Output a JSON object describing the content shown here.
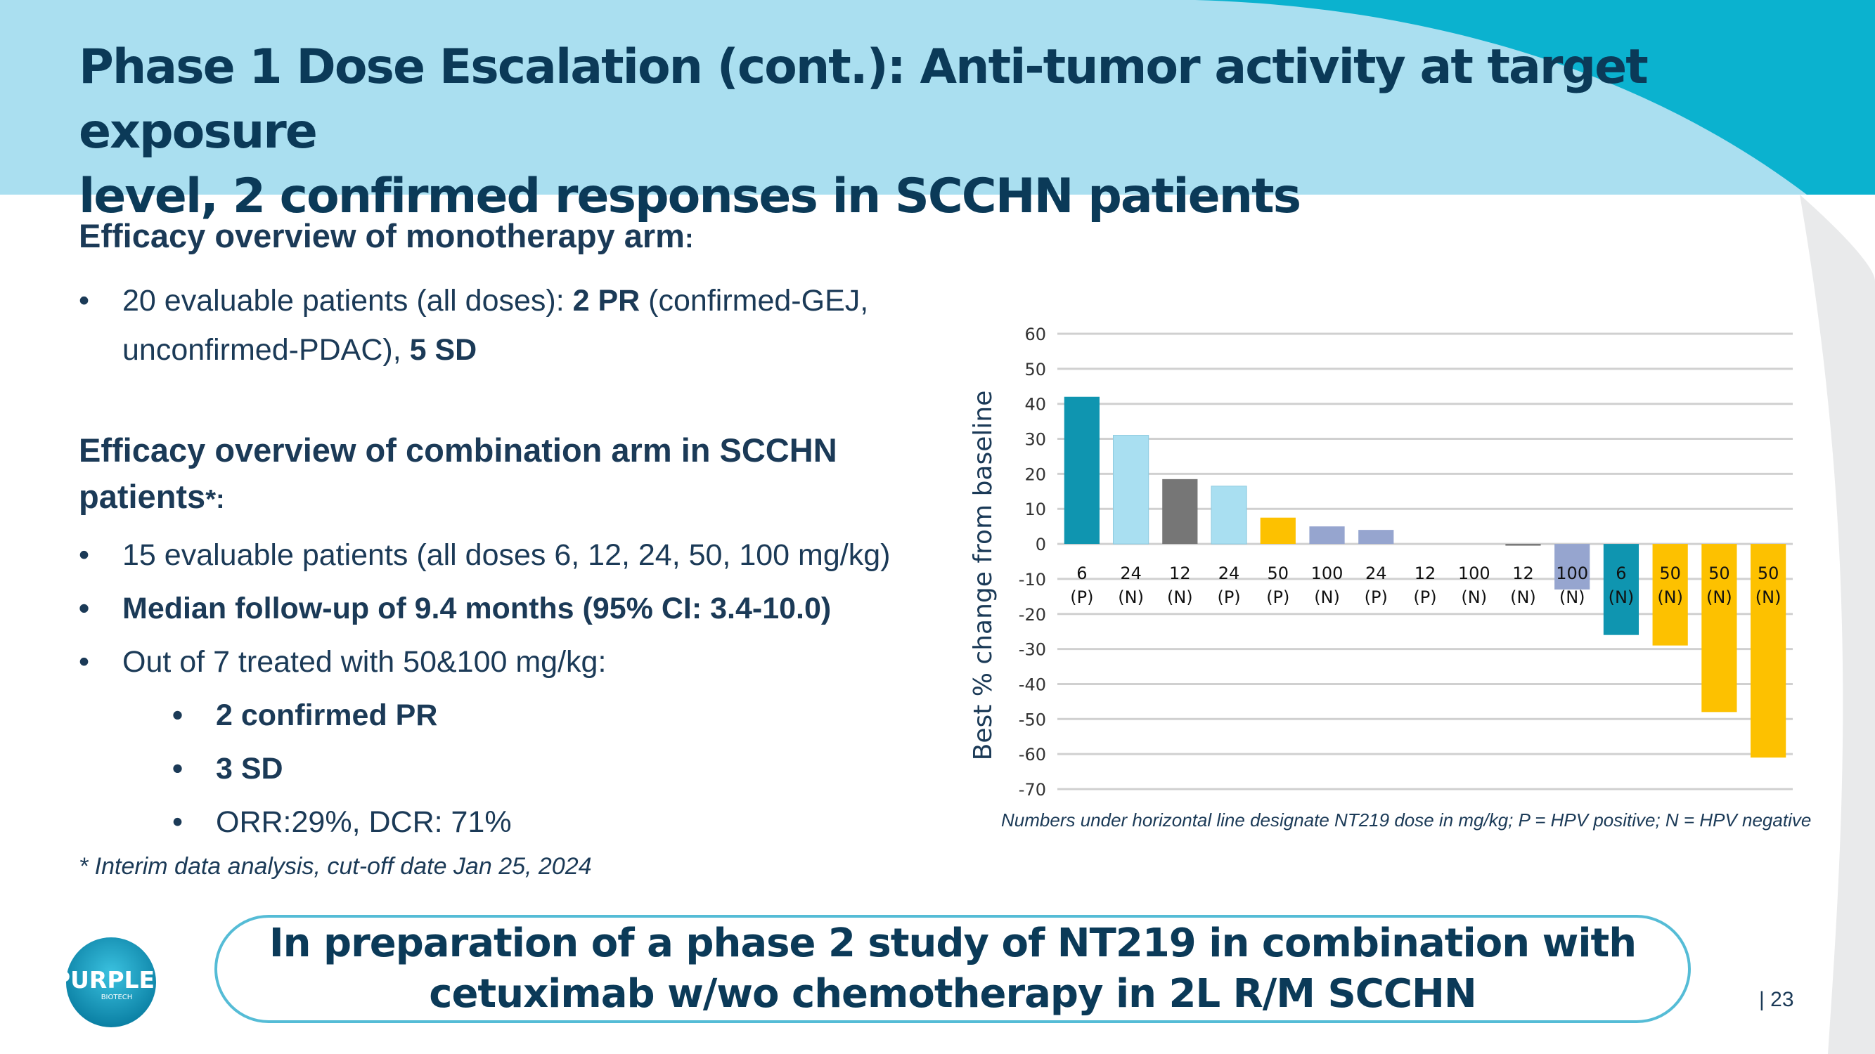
{
  "slide": {
    "title_line1": "Phase 1 Dose Escalation (cont.): Anti-tumor activity at target exposure",
    "title_line2": "level, 2 confirmed responses in SCCHN patients",
    "mono": {
      "heading": "Efficacy overview of monotherapy arm",
      "heading_suffix": ":",
      "b1_pre": "20 evaluable patients (all doses):  ",
      "b1_bold1": "2 PR",
      "b1_mid": " (confirmed-GEJ,",
      "b1_line2": "unconfirmed-PDAC), ",
      "b1_bold2": "5 SD"
    },
    "combo": {
      "heading_line1": "Efficacy overview of combination arm in SCCHN",
      "heading_line2": "patients",
      "heading_star": "*:",
      "b1": "15 evaluable patients (all doses 6, 12, 24, 50, 100 mg/kg)",
      "b2": " Median follow-up of 9.4 months (95% CI: 3.4-10.0)",
      "b3": "Out of 7 treated with 50&100 mg/kg:",
      "sub1": "2 confirmed PR",
      "sub2": "3 SD",
      "sub3": "ORR:29%, DCR: 71%"
    },
    "footnote": "* Interim data analysis, cut-off date Jan 25, 2024",
    "chart_note": "Numbers under horizontal line designate NT219 dose in mg/kg; P = HPV positive; N = HPV negative",
    "cta_line1": "In preparation of a phase 2 study of NT219 in combination with",
    "cta_line2": "cetuximab w/wo chemotherapy in 2L R/M SCCHN",
    "logo_text": "PURPLE",
    "logo_sub": "BIOTECH",
    "page_number": "| 23"
  },
  "colors": {
    "header_bg": "#aadff0",
    "header_swoosh": "#0bb2cf",
    "title": "#0b3a58",
    "text": "#1b3a57",
    "cta_border": "#55bcd6",
    "right_arc": "#e9eaeb"
  },
  "chart_data": {
    "type": "bar",
    "ylabel": "Best % change from baseline",
    "ylim": [
      -70,
      60
    ],
    "yticks": [
      60,
      50,
      40,
      30,
      20,
      10,
      0,
      -10,
      -20,
      -30,
      -40,
      -50,
      -60,
      -70
    ],
    "grid": true,
    "categories": [
      {
        "dose": "6",
        "hpv": "(P)"
      },
      {
        "dose": "24",
        "hpv": "(N)"
      },
      {
        "dose": "12",
        "hpv": "(N)"
      },
      {
        "dose": "24",
        "hpv": "(P)"
      },
      {
        "dose": "50",
        "hpv": "(P)"
      },
      {
        "dose": "100",
        "hpv": "(N)"
      },
      {
        "dose": "24",
        "hpv": "(P)"
      },
      {
        "dose": "12",
        "hpv": "(P)"
      },
      {
        "dose": "100",
        "hpv": "(N)"
      },
      {
        "dose": "12",
        "hpv": "(N)"
      },
      {
        "dose": "100",
        "hpv": "(N)"
      },
      {
        "dose": "6",
        "hpv": "(N)"
      },
      {
        "dose": "50",
        "hpv": "(N)"
      },
      {
        "dose": "50",
        "hpv": "(N)"
      },
      {
        "dose": "50",
        "hpv": "(N)"
      }
    ],
    "values": [
      42,
      31,
      18.5,
      16.5,
      7.5,
      5,
      4,
      0,
      0,
      -0.5,
      -13,
      -26,
      -29,
      -48,
      -61
    ],
    "bar_colors": [
      "#0f95b0",
      "#a9dff1",
      "#767676",
      "#a9dff1",
      "#fdc100",
      "#96a5cf",
      "#96a5cf",
      "#a9dff1",
      "#a9dff1",
      "#767676",
      "#96a5cf",
      "#0f95b0",
      "#fdc100",
      "#fdc100",
      "#fdc100"
    ]
  }
}
